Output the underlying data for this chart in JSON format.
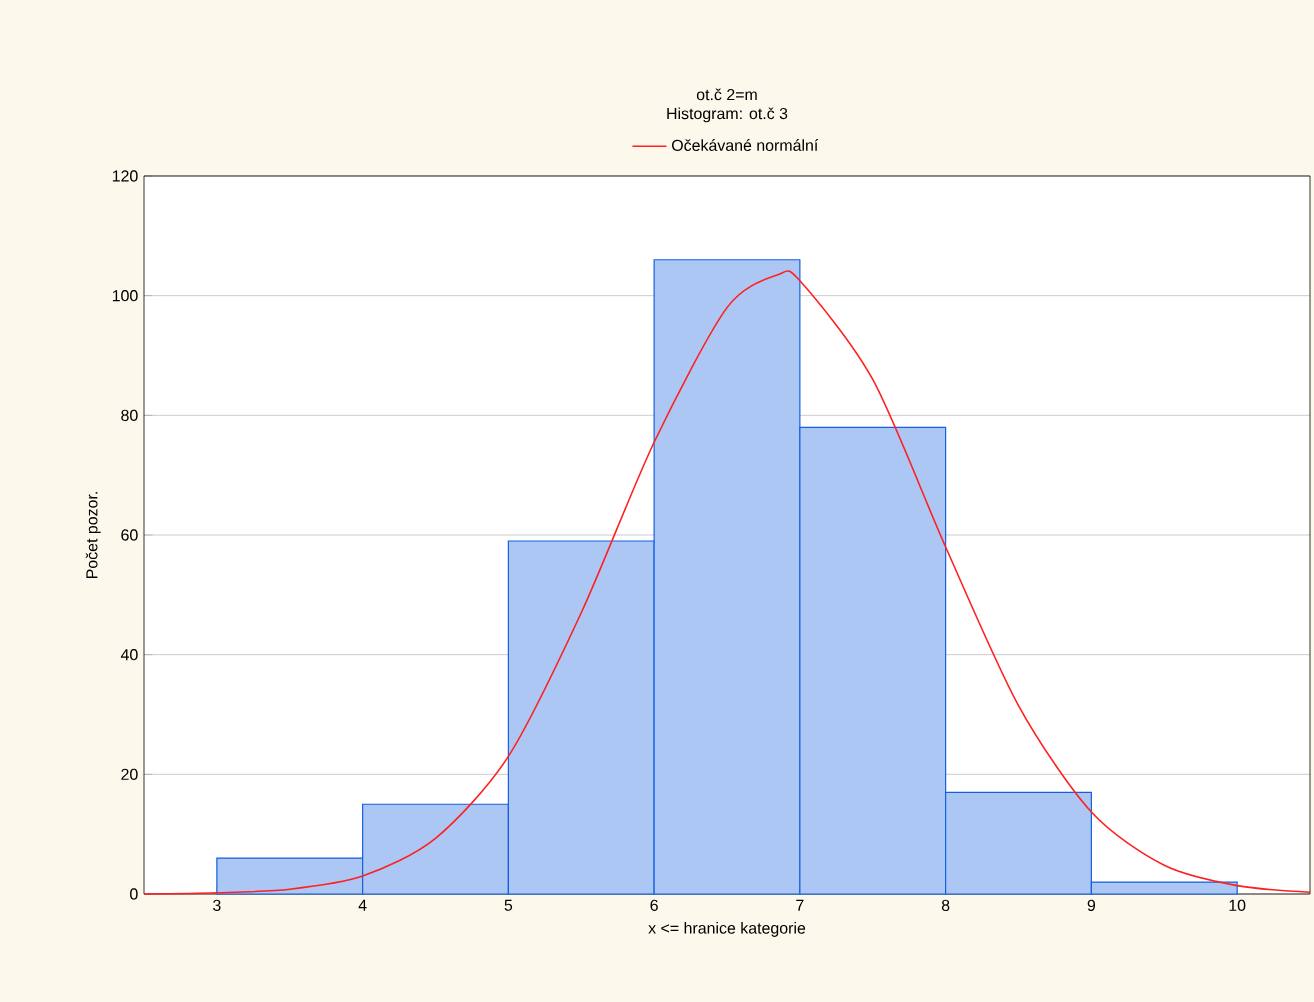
{
  "chart_data": {
    "type": "histogram",
    "title": "ot.č 2=m",
    "subtitle": "Histogram: ot.č 3",
    "xlabel": "x <= hranice kategorie",
    "ylabel": "Počet pozor.",
    "bins": [
      3,
      4,
      5,
      6,
      7,
      8,
      9,
      10
    ],
    "values": [
      6,
      15,
      59,
      106,
      78,
      17,
      2
    ],
    "color": "#1560e0",
    "series": [
      {
        "name": "Očekávané normální",
        "type": "line",
        "color": "#ff2020",
        "x": [
          2.5,
          3,
          3.5,
          4,
          4.5,
          5,
          5.5,
          6,
          6.5,
          6.85,
          7,
          7.5,
          8,
          8.5,
          9,
          9.5,
          10,
          10.5
        ],
        "values": [
          0,
          0.2,
          0.8,
          3,
          9.3,
          23,
          47,
          75.5,
          98,
          103.5,
          102.5,
          86,
          58,
          31.5,
          13.7,
          4.8,
          1.4,
          0.3
        ]
      }
    ],
    "xlim": [
      2.5,
      10.5
    ],
    "ylim": [
      0,
      120
    ],
    "xticks": [
      3,
      4,
      5,
      6,
      7,
      8,
      9,
      10
    ],
    "yticks": [
      0,
      20,
      40,
      60,
      80,
      100,
      120
    ],
    "grid": "y",
    "legend": "top"
  }
}
